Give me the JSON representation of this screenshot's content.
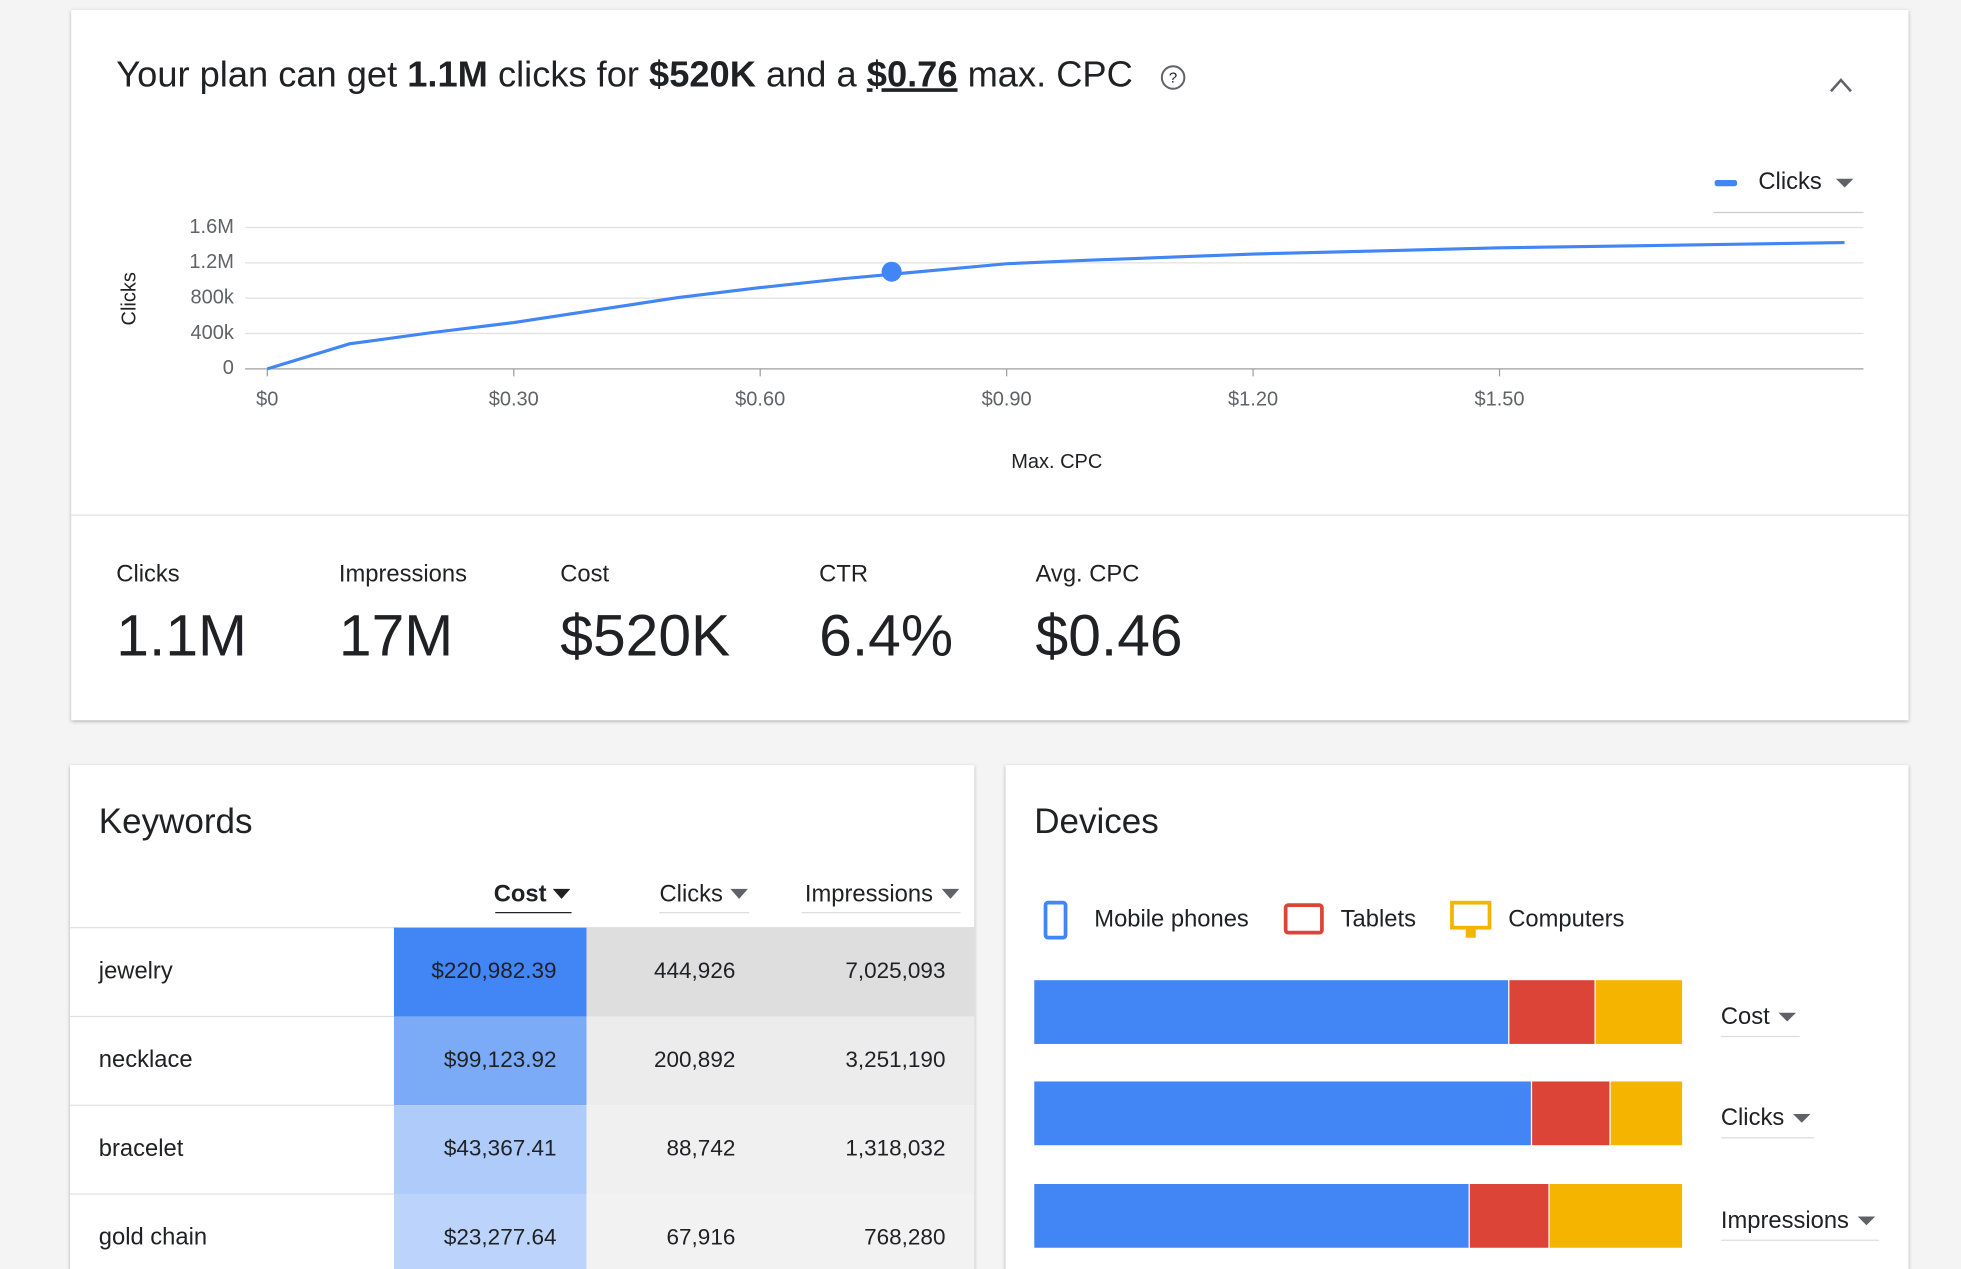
{
  "header": {
    "title": [
      "Your plan can get",
      "1.1M",
      "clicks for",
      "$520K",
      "and a",
      "$0.76",
      "max. CPC"
    ]
  },
  "chart_data": {
    "type": "line",
    "x_label": "Max. CPC",
    "y_label": "Clicks",
    "x": [
      0,
      0.1,
      0.2,
      0.3,
      0.4,
      0.5,
      0.6,
      0.7,
      0.9,
      1.0,
      1.2,
      1.5,
      1.92
    ],
    "series": [
      {
        "name": "Clicks",
        "color": "#4285f4",
        "values": [
          0,
          283000,
          410000,
          524000,
          665000,
          807000,
          920000,
          1020000,
          1190000,
          1230000,
          1300000,
          1370000,
          1430000
        ]
      }
    ],
    "marker": {
      "x": 0.76,
      "y": 1100000
    },
    "xlim": [
      -0.027,
      1.943
    ],
    "ylim": [
      0,
      1600000
    ],
    "xticks": [
      {
        "value": 0,
        "label": "$0"
      },
      {
        "value": 0.3,
        "label": "$0.30"
      },
      {
        "value": 0.6,
        "label": "$0.60"
      },
      {
        "value": 0.9,
        "label": "$0.90"
      },
      {
        "value": 1.2,
        "label": "$1.20"
      },
      {
        "value": 1.5,
        "label": "$1.50"
      }
    ],
    "yticks": [
      0,
      {
        "value": 400000,
        "label": "400k"
      },
      {
        "value": 800000,
        "label": "800k"
      },
      {
        "value": 1200000,
        "label": "1.2M"
      },
      {
        "value": 1600000,
        "label": "1.6M"
      }
    ],
    "grid": true
  },
  "stats": [
    {
      "label": "Clicks",
      "value": "1.1M"
    },
    {
      "label": "Impressions",
      "value": "17M"
    },
    {
      "label": "Cost",
      "value": "$520K"
    },
    {
      "label": "CTR",
      "value": "6.4%"
    },
    {
      "label": "Avg. CPC",
      "value": "$0.46"
    }
  ],
  "keywords": {
    "title": "Keywords",
    "columns": [
      "Cost",
      "Clicks",
      "Impressions"
    ],
    "rows": [
      [
        "jewelry",
        "$220,982.39",
        "444,926",
        "7,025,093"
      ],
      [
        "necklace",
        "$99,123.92",
        "200,892",
        "3,251,190"
      ],
      [
        "bracelet",
        "$43,367.41",
        "88,742",
        "1,318,032"
      ],
      [
        "gold chain",
        "$23,277.64",
        "67,916",
        "768,280"
      ]
    ]
  },
  "devices": {
    "title": "Devices",
    "metrics": [
      "Cost",
      "Clicks",
      "Impressions"
    ],
    "series": [
      {
        "name": "Mobile phones",
        "color": "#4285f4",
        "values": [
          73.2,
          76.7,
          67.1
        ]
      },
      {
        "name": "Tablets",
        "color": "#db4437",
        "values": [
          13.3,
          12.1,
          12.3
        ]
      },
      {
        "name": "Computers",
        "color": "#f4b400",
        "values": [
          13.5,
          11.2,
          20.6
        ]
      }
    ]
  }
}
